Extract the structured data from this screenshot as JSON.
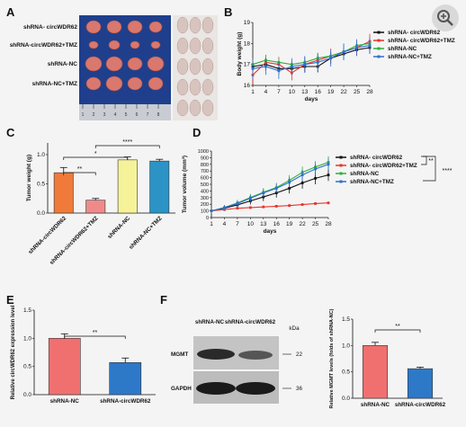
{
  "panels": {
    "A": "A",
    "B": "B",
    "C": "C",
    "D": "D",
    "E": "E",
    "F": "F"
  },
  "photo": {
    "rows": [
      "shRNA- circWDR62",
      "shRNA-circWDR62+TMZ",
      "shRNA-NC",
      "shRNA-NC+TMZ"
    ],
    "ruler_ticks": [
      "1",
      "2",
      "3",
      "4",
      "5",
      "6",
      "7",
      "8"
    ]
  },
  "colors": {
    "red": "#e8342a",
    "green": "#2fae3a",
    "blue": "#2c6fd1",
    "black": "#111111",
    "orange": "#f07a3a",
    "pink": "#f08a8a",
    "yellow": "#f6f29a",
    "teal": "#2b93c6",
    "salmon": "#f07070",
    "bar_blue": "#2e78c8"
  },
  "chart_data": [
    {
      "id": "B",
      "type": "line",
      "xlabel": "days",
      "ylabel": "Body weight (g)",
      "x": [
        1,
        4,
        7,
        10,
        13,
        16,
        19,
        22,
        25,
        28
      ],
      "ylim": [
        16,
        19
      ],
      "yticks": [
        16,
        17,
        18,
        19
      ],
      "series": [
        {
          "name": "shRNA- circWDR62",
          "values": [
            16.9,
            17.0,
            16.8,
            16.8,
            16.9,
            16.9,
            17.3,
            17.5,
            17.7,
            17.8
          ]
        },
        {
          "name": "shRNA- circWDR62+TMZ",
          "values": [
            16.5,
            17.1,
            17.0,
            16.6,
            17.0,
            17.2,
            17.4,
            17.6,
            17.8,
            18.1
          ]
        },
        {
          "name": "shRNA-NC",
          "values": [
            17.0,
            17.2,
            17.1,
            17.0,
            17.1,
            17.3,
            17.4,
            17.6,
            17.9,
            18.0
          ]
        },
        {
          "name": "shRNA-NC+TMZ",
          "values": [
            16.8,
            16.9,
            16.7,
            16.9,
            17.0,
            17.1,
            17.3,
            17.6,
            17.8,
            17.9
          ]
        }
      ]
    },
    {
      "id": "C",
      "type": "bar",
      "ylabel": "Tumor weight (g)",
      "ylim": [
        0,
        1.2
      ],
      "yticks": [
        "0.0",
        "0.5",
        "1.0"
      ],
      "categories": [
        "shRNA-circWDR62",
        "shRNA-circWDR62+TMZ",
        "shRNA-NC",
        "shRNA-NC+TMZ"
      ],
      "values": [
        0.69,
        0.22,
        0.91,
        0.89
      ],
      "errors": [
        0.09,
        0.03,
        0.05,
        0.03
      ],
      "significance": [
        "**",
        "*",
        "****"
      ]
    },
    {
      "id": "D",
      "type": "line",
      "xlabel": "days",
      "ylabel": "Tumor volume (mm³)",
      "ylim": [
        0,
        1000
      ],
      "yticks": [
        0,
        100,
        200,
        300,
        400,
        500,
        600,
        700,
        800,
        900,
        1000
      ],
      "x": [
        1,
        4,
        7,
        10,
        13,
        16,
        19,
        22,
        25,
        28
      ],
      "series": [
        {
          "name": "shRNA- circWDR62",
          "values": [
            100,
            140,
            190,
            250,
            310,
            370,
            440,
            520,
            590,
            640
          ]
        },
        {
          "name": "shRNA- circWDR62+TMZ",
          "values": [
            100,
            120,
            140,
            150,
            160,
            170,
            180,
            195,
            210,
            220
          ]
        },
        {
          "name": "shRNA-NC",
          "values": [
            100,
            150,
            220,
            300,
            380,
            450,
            560,
            680,
            760,
            830
          ]
        },
        {
          "name": "shRNA-NC+TMZ",
          "values": [
            100,
            150,
            210,
            290,
            370,
            440,
            530,
            640,
            730,
            800
          ]
        }
      ],
      "significance": [
        "**",
        "****"
      ]
    },
    {
      "id": "E",
      "type": "bar",
      "ylabel": "Relative circWDR62 expression level",
      "ylim": [
        0,
        1.5
      ],
      "yticks": [
        "0.0",
        "0.5",
        "1.0",
        "1.5"
      ],
      "categories": [
        "shRNA-NC",
        "shRNA-circWDR62"
      ],
      "values": [
        1.0,
        0.57
      ],
      "errors": [
        0.08,
        0.08
      ],
      "significance": [
        "**"
      ]
    },
    {
      "id": "F",
      "type": "bar",
      "ylabel": "Relative MGMT levels (folds of shRNA-NC)",
      "ylim": [
        0,
        1.5
      ],
      "yticks": [
        "0.0",
        "0.5",
        "1.0",
        "1.5"
      ],
      "categories": [
        "shRNA-NC",
        "shRNA-circWDR62"
      ],
      "values": [
        1.0,
        0.56
      ],
      "errors": [
        0.06,
        0.03
      ],
      "significance": [
        "**"
      ]
    }
  ],
  "blot": {
    "lanes": [
      "shRNA-NC",
      "shRNA-circWDR62"
    ],
    "unit": "kDa",
    "bands": [
      {
        "name": "MGMT",
        "kda": "22"
      },
      {
        "name": "GAPDH",
        "kda": "36"
      }
    ]
  }
}
